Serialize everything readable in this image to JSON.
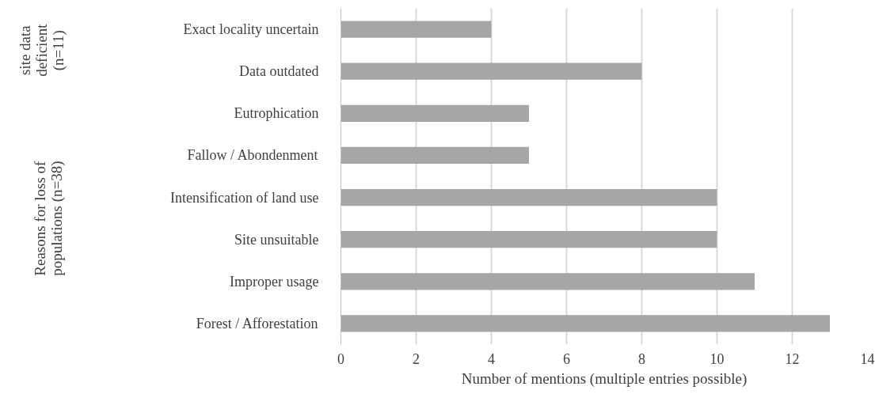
{
  "chart_data": {
    "type": "bar",
    "orientation": "horizontal",
    "xlabel": "Number of mentions (multiple entries possible)",
    "categories": [
      "Exact locality uncertain",
      "Data outdated",
      "Eutrophication",
      "Fallow / Abondenment",
      "Intensification of land use",
      "Site unsuitable",
      "Improper usage",
      "Forest / Afforestation"
    ],
    "values": [
      4,
      8,
      5,
      5,
      10,
      10,
      11,
      13
    ],
    "color": "#a6a6a6",
    "xlim": [
      0,
      14
    ],
    "xticks": [
      0,
      2,
      4,
      6,
      8,
      10,
      12,
      14
    ],
    "grid": "x",
    "annotations": [
      "site data\ndeficient\n(n=11)",
      "Reasons for loss of\npopulations (n=38)"
    ]
  }
}
